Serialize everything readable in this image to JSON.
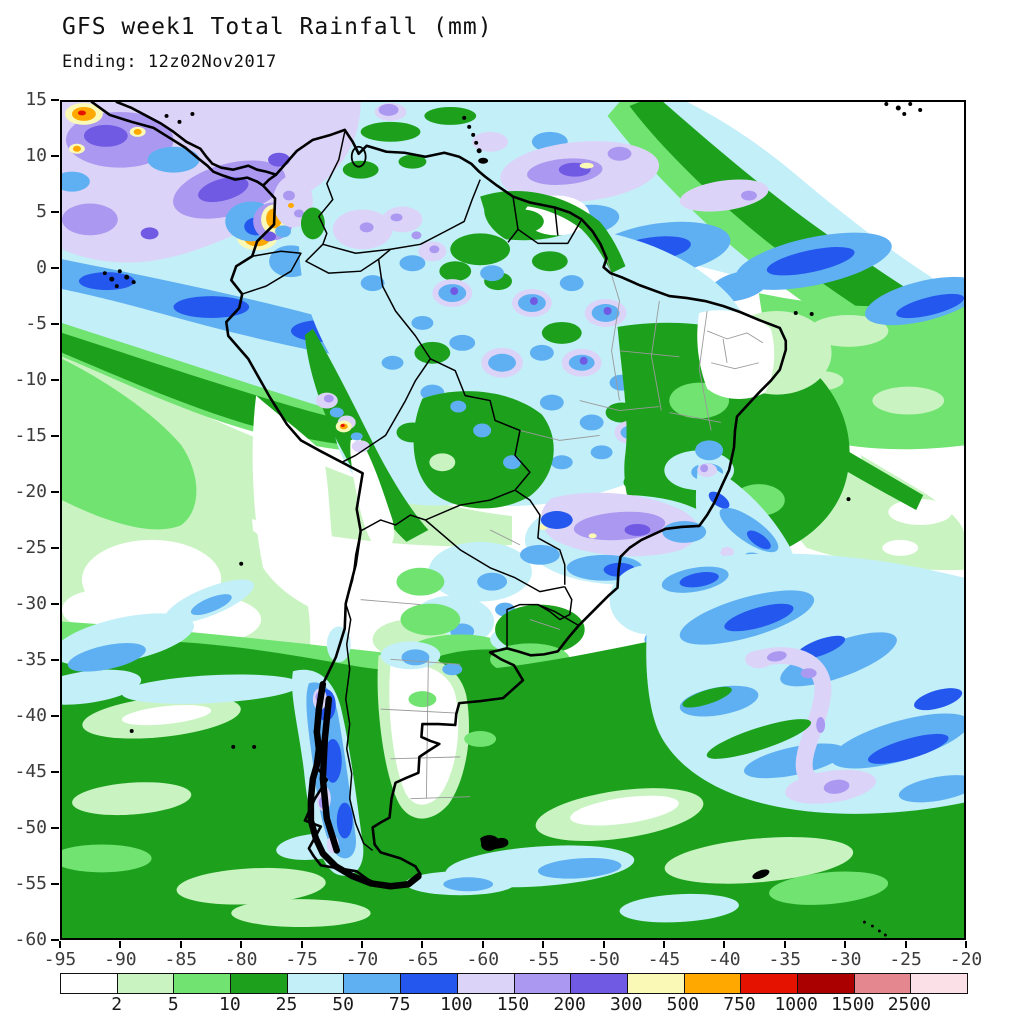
{
  "header": {
    "title": "GFS week1 Total Rainfall (mm)",
    "subtitle": "Ending: 12z02Nov2017"
  },
  "axes": {
    "x_ticks": [
      "-95",
      "-90",
      "-85",
      "-80",
      "-75",
      "-70",
      "-65",
      "-60",
      "-55",
      "-50",
      "-45",
      "-40",
      "-35",
      "-30",
      "-25",
      "-20"
    ],
    "y_ticks": [
      "15",
      "10",
      "5",
      "0",
      "-5",
      "-10",
      "-15",
      "-20",
      "-25",
      "-30",
      "-35",
      "-40",
      "-45",
      "-50",
      "-55",
      "-60"
    ]
  },
  "colorbar": {
    "labels": [
      "2",
      "5",
      "10",
      "25",
      "50",
      "75",
      "100",
      "150",
      "200",
      "300",
      "500",
      "750",
      "1000",
      "1500",
      "2500"
    ],
    "colors": [
      "#ffffff",
      "#c9f4c2",
      "#70e370",
      "#1da11d",
      "#c3eff8",
      "#5fb0f2",
      "#2457ee",
      "#dcd4f8",
      "#ab99f1",
      "#7059e3",
      "#faf9b6",
      "#ffa800",
      "#e61200",
      "#ab0000",
      "#e5878f",
      "#fbe0e8"
    ]
  },
  "chart_data": {
    "type": "heatmap",
    "title": "GFS week1 Total Rainfall (mm)",
    "subtitle": "Ending: 12z02Nov2017",
    "model": "GFS",
    "period": "week1",
    "variable": "Total Rainfall",
    "units": "mm",
    "valid_ending": "12z02Nov2017",
    "region": "South America and adjacent oceans",
    "xlim": [
      -95,
      -20
    ],
    "ylim": [
      -60,
      15
    ],
    "x_ticks": [
      -95,
      -90,
      -85,
      -80,
      -75,
      -70,
      -65,
      -60,
      -55,
      -50,
      -45,
      -40,
      -35,
      -30,
      -25,
      -20
    ],
    "y_ticks": [
      15,
      10,
      5,
      0,
      -5,
      -10,
      -15,
      -20,
      -25,
      -30,
      -35,
      -40,
      -45,
      -50,
      -55,
      -60
    ],
    "levels_mm": [
      2,
      5,
      10,
      25,
      50,
      75,
      100,
      150,
      200,
      300,
      500,
      750,
      1000,
      1500,
      2500
    ],
    "palette": [
      "#ffffff",
      "#c9f4c2",
      "#70e370",
      "#1da11d",
      "#c3eff8",
      "#5fb0f2",
      "#2457ee",
      "#dcd4f8",
      "#ab99f1",
      "#7059e3",
      "#faf9b6",
      "#ffa800",
      "#e61200",
      "#ab0000",
      "#e5878f",
      "#fbe0e8"
    ],
    "grid": false,
    "legend_position": "bottom",
    "features": [
      "ITCZ band of 50-300 mm across the east Pacific near 8-14N with 300-750 mm purple/orange maxima in the northwest corner",
      "Orange 500-750 mm maximum on the Colombian Pacific coast near 4N 77W",
      "Atlantic ITCZ band 50-200 mm sloping from 10N 55W toward 0N 20W with lavender 150-200 mm patches",
      "Speckled 50-300 mm cells over the Amazon basin, Venezuela and interior Brazil",
      "150-300 mm band over southeast Brazil near 23S 52-45W with small 300-500 mm spots",
      "100-300 mm along the south-central Chile coast between 38S and 53S",
      "South Atlantic storm-track band 50-200 mm near 25-40S with a hooked 150-300 mm swirl",
      "Dry (<2-5 mm) southeast Pacific subtropics, interior Argentina, and northeast Brazil"
    ]
  }
}
